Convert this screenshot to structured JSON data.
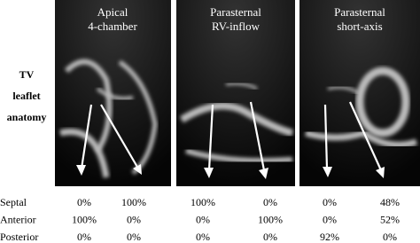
{
  "side_label": [
    "TV",
    "leaflet",
    "anatomy"
  ],
  "panels": [
    {
      "title": [
        "Apical",
        "4-chamber"
      ]
    },
    {
      "title": [
        "Parasternal",
        "RV-inflow"
      ]
    },
    {
      "title": [
        "Parasternal",
        "short-axis"
      ]
    }
  ],
  "table": {
    "rows": [
      {
        "label": "Septal",
        "values": [
          "0%",
          "100%",
          "100%",
          "0%",
          "0%",
          "48%"
        ]
      },
      {
        "label": "Anterior",
        "values": [
          "100%",
          "0%",
          "0%",
          "100%",
          "0%",
          "52%"
        ]
      },
      {
        "label": "Posterior",
        "values": [
          "0%",
          "0%",
          "0%",
          "0%",
          "92%",
          "0%"
        ]
      }
    ]
  }
}
